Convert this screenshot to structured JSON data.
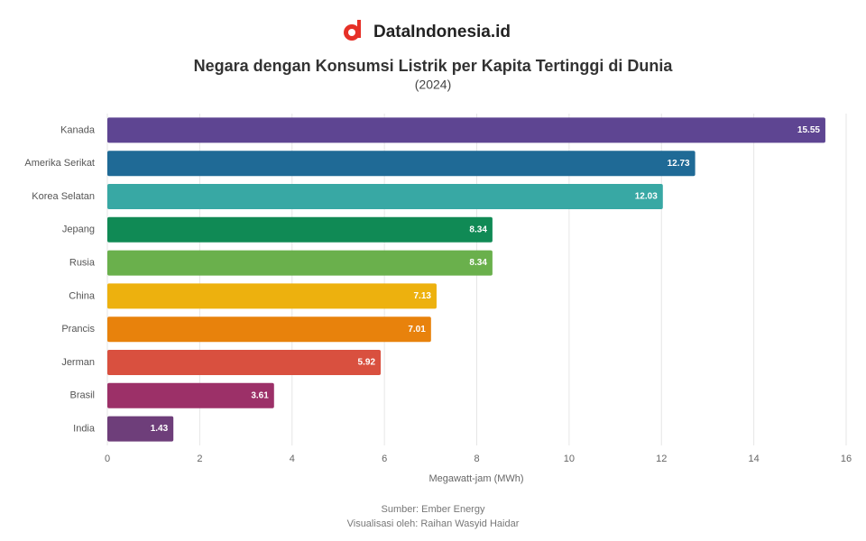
{
  "brand": "DataIndonesia.id",
  "chart_data": {
    "type": "hbar",
    "title": "Negara dengan Konsumsi Listrik per Kapita Tertinggi di Dunia",
    "subtitle": "(2024)",
    "categories": [
      "Kanada",
      "Amerika Serikat",
      "Korea Selatan",
      "Jepang",
      "Rusia",
      "China",
      "Prancis",
      "Jerman",
      "Brasil",
      "India"
    ],
    "values": [
      15.55,
      12.73,
      12.03,
      8.34,
      8.34,
      7.13,
      7.01,
      5.92,
      3.61,
      1.43
    ],
    "colors": [
      "#5e4592",
      "#1f6a96",
      "#38a8a4",
      "#108a55",
      "#6ab04c",
      "#edb10e",
      "#e8820c",
      "#d9503f",
      "#9c3068",
      "#6e3e7a"
    ],
    "xlim": [
      0,
      16
    ],
    "xticks": [
      0,
      2,
      4,
      6,
      8,
      10,
      12,
      14,
      16
    ],
    "grid": true,
    "xlabel": "Megawatt-jam (MWh)",
    "source": "Sumber: Ember Energy",
    "credit": "Visualisasi oleh: Raihan Wasyid Haidar"
  }
}
